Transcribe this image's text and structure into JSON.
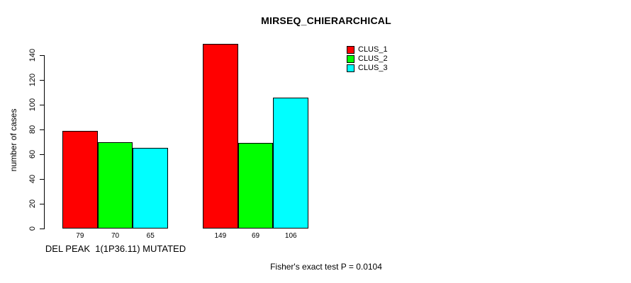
{
  "title": "MIRSEQ_CHIERARCHICAL",
  "ylabel": "number of cases",
  "group1_label": "DEL PEAK  1(1P36.11) MUTATED",
  "footer": "Fisher's exact test P = 0.0104",
  "legend": [
    {
      "label": "CLUS_1",
      "color": "#ff0000"
    },
    {
      "label": "CLUS_2",
      "color": "#00ff00"
    },
    {
      "label": "CLUS_3",
      "color": "#00ffff"
    }
  ],
  "chart_data": {
    "type": "bar",
    "title": "MIRSEQ_CHIERARCHICAL",
    "xlabel": "",
    "ylabel": "number of cases",
    "categories": [
      "DEL PEAK  1(1P36.11) MUTATED",
      ""
    ],
    "series": [
      {
        "name": "CLUS_1",
        "color": "#ff0000",
        "values": [
          79,
          149
        ]
      },
      {
        "name": "CLUS_2",
        "color": "#00ff00",
        "values": [
          70,
          69
        ]
      },
      {
        "name": "CLUS_3",
        "color": "#00ffff",
        "values": [
          65,
          106
        ]
      }
    ],
    "bar_value_labels": [
      [
        79,
        70,
        65
      ],
      [
        149,
        69,
        106
      ]
    ],
    "y_ticks": [
      0,
      20,
      40,
      60,
      80,
      100,
      120,
      140
    ],
    "ylim": [
      0,
      140
    ],
    "grid": false,
    "legend_position": "top-right",
    "annotation": "Fisher's exact test P = 0.0104"
  }
}
